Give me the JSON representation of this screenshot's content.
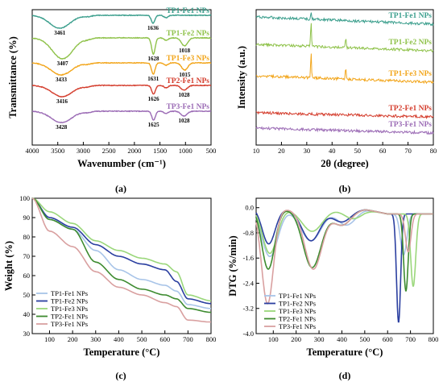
{
  "chart_data": [
    {
      "type": "line",
      "panel": "(a)",
      "xlabel": "Wavenumber (cm⁻¹)",
      "ylabel": "Transmittance (%)",
      "xlim": [
        4000,
        500
      ],
      "x_reversed": true,
      "xticks": [
        4000,
        3500,
        3000,
        2500,
        2000,
        1500,
        1000,
        500
      ],
      "y_ticks_shown": false,
      "series": [
        {
          "name": "TP1-Fe1 NPs",
          "color": "#3a9e8c",
          "offset": 0,
          "peaks": [
            {
              "x": 3461,
              "depth": 16,
              "width": 200,
              "label": "3461"
            },
            {
              "x": 1636,
              "depth": 10,
              "width": 35,
              "label": "1636"
            }
          ]
        },
        {
          "name": "TP1-Fe2 NPs",
          "color": "#8fc24a",
          "offset": 1,
          "peaks": [
            {
              "x": 3407,
              "depth": 26,
              "width": 200,
              "label": "3407"
            },
            {
              "x": 1628,
              "depth": 20,
              "width": 35,
              "label": "1628"
            },
            {
              "x": 1018,
              "depth": 10,
              "width": 60,
              "label": "1018"
            }
          ]
        },
        {
          "name": "TP1-Fe3 NPs",
          "color": "#f2a51a",
          "offset": 2,
          "peaks": [
            {
              "x": 3433,
              "depth": 15,
              "width": 200,
              "label": "3433"
            },
            {
              "x": 1631,
              "depth": 14,
              "width": 35,
              "label": "1631"
            },
            {
              "x": 1015,
              "depth": 9,
              "width": 60,
              "label": "1015"
            }
          ]
        },
        {
          "name": "TP2-Fe1 NPs",
          "color": "#d43c2c",
          "offset": 3,
          "peaks": [
            {
              "x": 3416,
              "depth": 14,
              "width": 200,
              "label": "3416"
            },
            {
              "x": 1626,
              "depth": 11,
              "width": 35,
              "label": "1626"
            },
            {
              "x": 1028,
              "depth": 6,
              "width": 60,
              "label": "1028"
            }
          ]
        },
        {
          "name": "TP3-Fe1 NPs",
          "color": "#9b6bb5",
          "offset": 4,
          "peaks": [
            {
              "x": 3428,
              "depth": 14,
              "width": 200,
              "label": "3428"
            },
            {
              "x": 1625,
              "depth": 11,
              "width": 35,
              "label": "1625"
            },
            {
              "x": 1028,
              "depth": 6,
              "width": 60,
              "label": "1028"
            }
          ]
        }
      ]
    },
    {
      "type": "line",
      "panel": "(b)",
      "xlabel": "2θ (degree)",
      "ylabel": "Intensity (a.u.)",
      "xlim": [
        10,
        80
      ],
      "xticks": [
        10,
        20,
        30,
        40,
        50,
        60,
        70,
        80
      ],
      "y_ticks_shown": false,
      "series": [
        {
          "name": "TP1-Fe1 NPs",
          "color": "#3a9e8c",
          "offset": 0,
          "start": 9,
          "end": 24,
          "peaks": [
            {
              "x": 31.7,
              "height": 10
            }
          ]
        },
        {
          "name": "TP1-Fe2 NPs",
          "color": "#8fc24a",
          "offset": 1,
          "start": 8,
          "end": 20,
          "peaks": [
            {
              "x": 31.7,
              "height": 30
            },
            {
              "x": 45.4,
              "height": 14
            }
          ]
        },
        {
          "name": "TP1-Fe3 NPs",
          "color": "#f2a51a",
          "offset": 2,
          "start": 8,
          "end": 18,
          "peaks": [
            {
              "x": 31.7,
              "height": 30
            },
            {
              "x": 45.4,
              "height": 14
            }
          ]
        },
        {
          "name": "TP2-Fe1 NPs",
          "color": "#d43c2c",
          "offset": 3,
          "start": 5,
          "end": 15,
          "peaks": []
        },
        {
          "name": "TP3-Fe1 NPs",
          "color": "#9b6bb5",
          "offset": 4,
          "start": 6,
          "end": 12,
          "peaks": []
        }
      ]
    },
    {
      "type": "line",
      "panel": "(c)",
      "xlabel": "Temperature (°C)",
      "ylabel": "Weight (%)",
      "xlim": [
        25,
        800
      ],
      "ylim": [
        30,
        100
      ],
      "xticks": [
        100,
        200,
        300,
        400,
        500,
        600,
        700,
        800
      ],
      "yticks": [
        30,
        40,
        50,
        60,
        70,
        80,
        90,
        100
      ],
      "legend": "bottom-left",
      "series": [
        {
          "name": "TP1-Fe1 NPs",
          "color": "#a8c4e8",
          "x": [
            25,
            100,
            200,
            300,
            400,
            500,
            600,
            650,
            700,
            800
          ],
          "y": [
            100,
            90,
            84,
            73,
            63,
            58,
            55,
            52,
            45,
            43
          ]
        },
        {
          "name": "TP1-Fe2 NPs",
          "color": "#2b3fa0",
          "x": [
            25,
            100,
            200,
            300,
            400,
            500,
            600,
            650,
            700,
            800
          ],
          "y": [
            100,
            90,
            85,
            76,
            70,
            66,
            63,
            57,
            48,
            45.5
          ]
        },
        {
          "name": "TP1-Fe3 NPs",
          "color": "#9ad77a",
          "x": [
            25,
            100,
            200,
            300,
            400,
            500,
            600,
            650,
            700,
            800
          ],
          "y": [
            100,
            93,
            87,
            78,
            73,
            69,
            66,
            62,
            50,
            47
          ]
        },
        {
          "name": "TP2-Fe1 NPs",
          "color": "#3d8b2f",
          "x": [
            25,
            100,
            200,
            300,
            400,
            500,
            600,
            650,
            700,
            800
          ],
          "y": [
            100,
            89,
            84,
            67,
            58,
            53,
            50,
            48,
            43,
            41
          ]
        },
        {
          "name": "TP3-Fe1 NPs",
          "color": "#d9a0a0",
          "x": [
            25,
            100,
            200,
            300,
            400,
            500,
            600,
            650,
            700,
            800
          ],
          "y": [
            100,
            83,
            75,
            62,
            54,
            50,
            46,
            44,
            37,
            36
          ]
        }
      ]
    },
    {
      "type": "line",
      "panel": "(d)",
      "xlabel": "Temperature (°C)",
      "ylabel": "DTG (%/min)",
      "xlim": [
        25,
        800
      ],
      "ylim": [
        -4.0,
        0.3
      ],
      "xticks": [
        100,
        200,
        300,
        400,
        500,
        600,
        700,
        800
      ],
      "yticks": [
        0.0,
        -0.8,
        -1.6,
        -2.4,
        -3.2,
        -4.0
      ],
      "ytick_labels": [
        "0.0",
        "-0.8",
        "-1.6",
        "-2.4",
        "-3.2",
        "-4.0"
      ],
      "legend": "bottom-left",
      "series": [
        {
          "name": "TP1-Fe1 NPs",
          "color": "#a8c4e8",
          "base": -0.05,
          "peaks": [
            {
              "x": 85,
              "depth": 1.5,
              "width": 35
            },
            {
              "x": 265,
              "depth": 1.0,
              "width": 45
            },
            {
              "x": 420,
              "depth": 0.5,
              "width": 40
            },
            {
              "x": 670,
              "depth": 1.3,
              "width": 14
            }
          ]
        },
        {
          "name": "TP1-Fe2 NPs",
          "color": "#2b3fa0",
          "base": -0.05,
          "peaks": [
            {
              "x": 80,
              "depth": 1.1,
              "width": 28
            },
            {
              "x": 265,
              "depth": 1.0,
              "width": 40
            },
            {
              "x": 400,
              "depth": 0.4,
              "width": 40
            },
            {
              "x": 648,
              "depth": 3.45,
              "width": 9
            }
          ]
        },
        {
          "name": "TP1-Fe3 NPs",
          "color": "#9ad77a",
          "base": -0.05,
          "peaks": [
            {
              "x": 85,
              "depth": 1.4,
              "width": 32
            },
            {
              "x": 270,
              "depth": 0.7,
              "width": 45
            },
            {
              "x": 450,
              "depth": 0.3,
              "width": 40
            },
            {
              "x": 712,
              "depth": 2.3,
              "width": 11
            }
          ]
        },
        {
          "name": "TP2-Fe1 NPs",
          "color": "#3d8b2f",
          "base": -0.05,
          "peaks": [
            {
              "x": 78,
              "depth": 1.9,
              "width": 28
            },
            {
              "x": 270,
              "depth": 1.85,
              "width": 40
            },
            {
              "x": 400,
              "depth": 0.5,
              "width": 40
            },
            {
              "x": 680,
              "depth": 2.45,
              "width": 10
            }
          ]
        },
        {
          "name": "TP3-Fe1 NPs",
          "color": "#d9a0a0",
          "base": -0.05,
          "peaks": [
            {
              "x": 75,
              "depth": 3.0,
              "width": 26
            },
            {
              "x": 275,
              "depth": 1.9,
              "width": 38
            },
            {
              "x": 400,
              "depth": 0.5,
              "width": 40
            },
            {
              "x": 690,
              "depth": 1.2,
              "width": 12
            }
          ]
        }
      ]
    }
  ]
}
